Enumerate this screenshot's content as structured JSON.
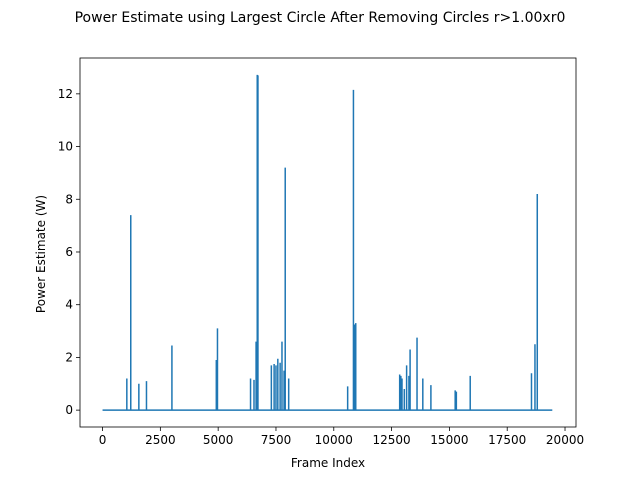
{
  "chart_data": {
    "type": "line",
    "title": "Power Estimate using Largest Circle After Removing Circles r>1.00xr0",
    "xlabel": "Frame Index",
    "ylabel": "Power Estimate (W)",
    "xlim": [
      -975,
      20475
    ],
    "ylim": [
      -0.64,
      13.36
    ],
    "x_ticks": [
      0,
      2500,
      5000,
      7500,
      10000,
      12500,
      15000,
      17500,
      20000
    ],
    "x_tick_labels": [
      "0",
      "2500",
      "5000",
      "7500",
      "10000",
      "12500",
      "15000",
      "17500",
      "20000"
    ],
    "y_ticks": [
      0,
      2,
      4,
      6,
      8,
      10,
      12
    ],
    "y_tick_labels": [
      "0",
      "2",
      "4",
      "6",
      "8",
      "10",
      "12"
    ],
    "grid": false,
    "color": "#1f77b4",
    "series": [
      {
        "x": [
          0,
          1050,
          1220,
          1570,
          1900,
          3000,
          4920,
          4970,
          6400,
          6550,
          6640,
          6690,
          6720,
          7300,
          7420,
          7500,
          7580,
          7680,
          7760,
          7850,
          7900,
          8050,
          10600,
          10850,
          10900,
          10950,
          12850,
          12900,
          12950,
          13050,
          13150,
          13250,
          13300,
          13600,
          13850,
          14200,
          15250,
          15300,
          15900,
          18550,
          18700,
          18800,
          19450
        ],
        "y": [
          0,
          1.2,
          7.4,
          1.0,
          1.1,
          2.45,
          1.9,
          3.1,
          1.2,
          1.15,
          2.6,
          12.72,
          12.7,
          1.7,
          1.75,
          1.7,
          1.95,
          1.8,
          2.6,
          1.5,
          9.2,
          1.2,
          0.9,
          12.15,
          3.25,
          3.3,
          1.35,
          1.3,
          1.2,
          0.8,
          1.7,
          1.3,
          2.3,
          2.75,
          1.2,
          0.95,
          0.75,
          0.7,
          1.3,
          1.4,
          2.5,
          8.2,
          0
        ]
      }
    ]
  }
}
